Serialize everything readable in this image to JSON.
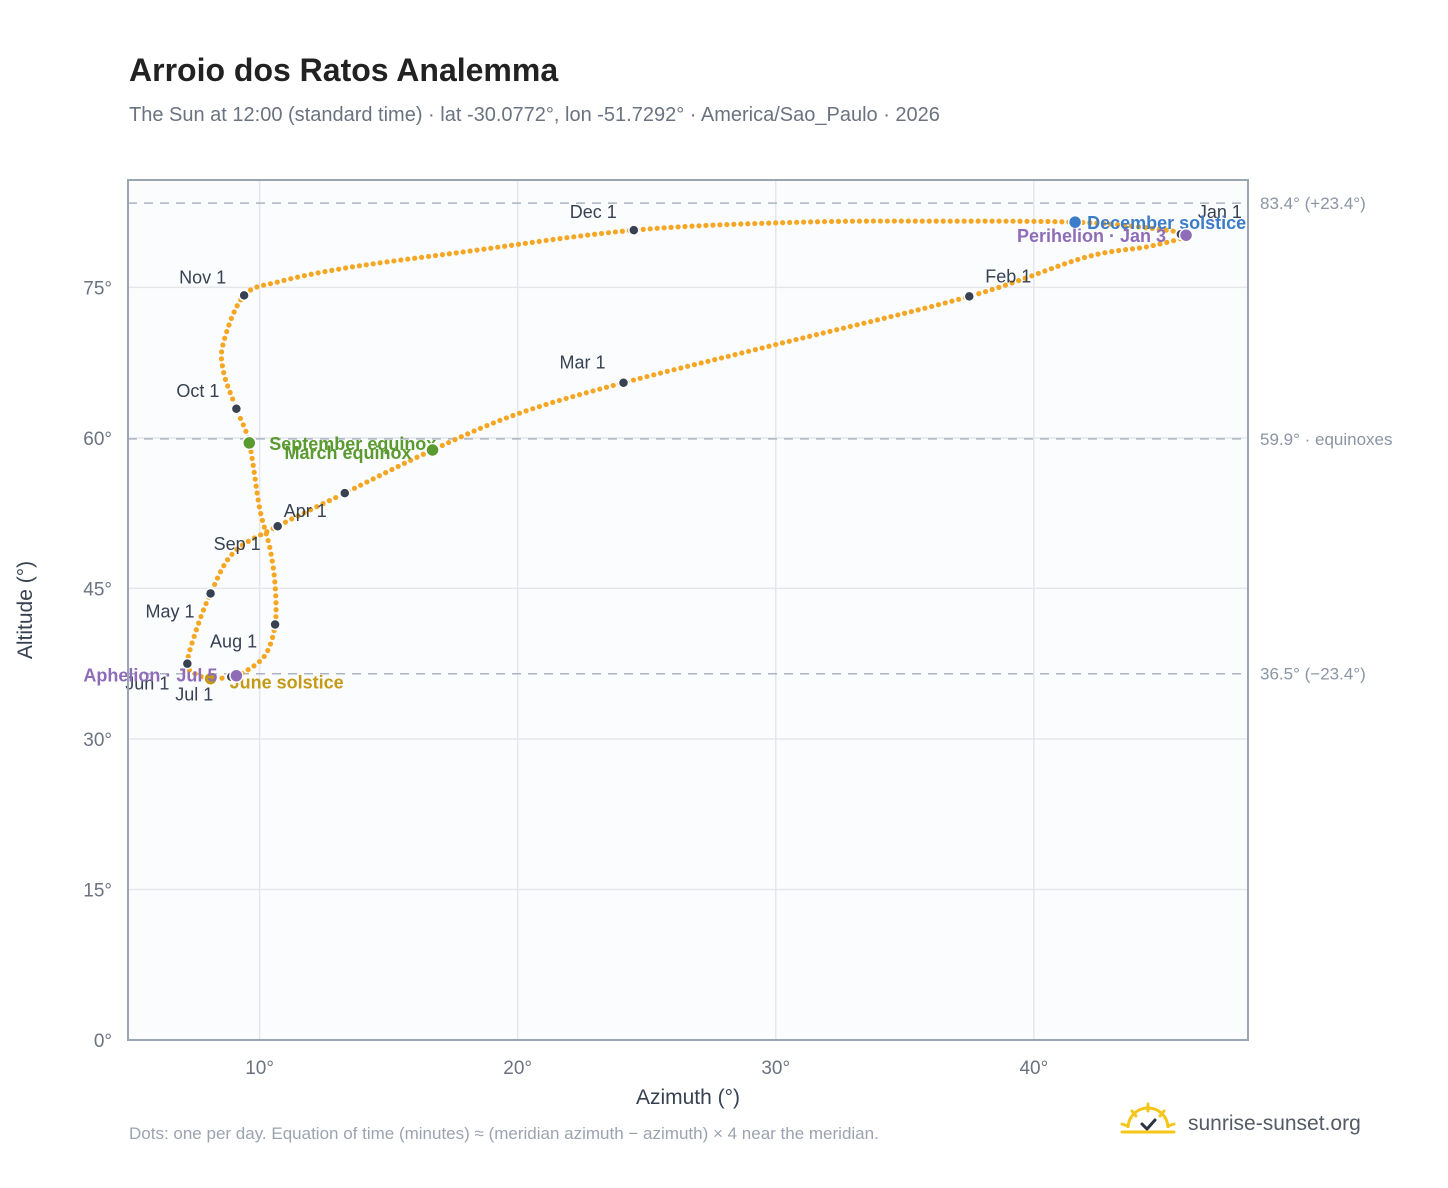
{
  "title": "Arroio dos Ratos Analemma",
  "subtitle": "The Sun at 12:00 (standard time) · lat -30.0772°, lon -51.7292° · America/Sao_Paulo · 2026",
  "footnote": "Dots: one per day. Equation of time (minutes) ≈ (meridian azimuth − azimuth) × 4 near the meridian.",
  "brand": {
    "name": "sunrise-sunset.org",
    "icon": "sun-icon"
  },
  "colors": {
    "path": "#f5a623",
    "month": "#374151",
    "equinox": "#5a9a2e",
    "december": "#3d7cc9",
    "june": "#c49a16",
    "apsis": "#8e6cb8",
    "grid": "#e5e7eb",
    "ref": "#aab4c3"
  },
  "chart_data": {
    "type": "scatter",
    "xlabel": "Azimuth (°)",
    "ylabel": "Altitude (°)",
    "xlim": [
      4.9,
      48.3
    ],
    "ylim": [
      0,
      85.7
    ],
    "x_ticks": [
      {
        "v": 10,
        "label": "10°"
      },
      {
        "v": 20,
        "label": "20°"
      },
      {
        "v": 30,
        "label": "30°"
      },
      {
        "v": 40,
        "label": "40°"
      }
    ],
    "y_ticks": [
      {
        "v": 0,
        "label": "0°"
      },
      {
        "v": 15,
        "label": "15°"
      },
      {
        "v": 30,
        "label": "30°"
      },
      {
        "v": 45,
        "label": "45°"
      },
      {
        "v": 60,
        "label": "60°"
      },
      {
        "v": 75,
        "label": "75°"
      }
    ],
    "grid": true,
    "reference_lines": [
      {
        "y": 83.4,
        "label": "83.4° (+23.4°)"
      },
      {
        "y": 59.9,
        "label": "59.9° · equinoxes"
      },
      {
        "y": 36.5,
        "label": "36.5° (−23.4°)"
      }
    ],
    "path": [
      [
        45.9,
        80.2
      ],
      [
        44.5,
        79.1
      ],
      [
        42.0,
        78.0
      ],
      [
        37.5,
        74.1
      ],
      [
        30.0,
        69.3
      ],
      [
        24.1,
        65.5
      ],
      [
        20.0,
        62.4
      ],
      [
        16.7,
        58.8
      ],
      [
        13.3,
        54.5
      ],
      [
        10.7,
        51.2
      ],
      [
        9.0,
        48.6
      ],
      [
        8.1,
        44.5
      ],
      [
        7.5,
        40.5
      ],
      [
        7.2,
        37.5
      ],
      [
        7.5,
        36.5
      ],
      [
        8.1,
        36.0
      ],
      [
        8.9,
        36.2
      ],
      [
        9.3,
        36.5
      ],
      [
        10.2,
        38.3
      ],
      [
        10.6,
        41.4
      ],
      [
        10.6,
        45.3
      ],
      [
        10.4,
        49.0
      ],
      [
        10.0,
        53.0
      ],
      [
        9.6,
        59.5
      ],
      [
        9.1,
        62.9
      ],
      [
        8.6,
        66.6
      ],
      [
        8.6,
        69.5
      ],
      [
        9.4,
        74.2
      ],
      [
        10.8,
        75.6
      ],
      [
        13.5,
        77.0
      ],
      [
        17.8,
        78.5
      ],
      [
        24.5,
        80.7
      ],
      [
        31.0,
        81.5
      ],
      [
        36.5,
        81.6
      ],
      [
        41.6,
        81.5
      ],
      [
        44.5,
        80.9
      ],
      [
        45.9,
        80.2
      ]
    ],
    "month_markers": [
      {
        "label": "Jan 1",
        "x": 45.7,
        "y": 80.3,
        "lx": 17,
        "ly": -16,
        "anchor": "start"
      },
      {
        "label": "Feb 1",
        "x": 37.5,
        "y": 74.1,
        "lx": 16,
        "ly": -14,
        "anchor": "start"
      },
      {
        "label": "Mar 1",
        "x": 24.1,
        "y": 65.5,
        "lx": -18,
        "ly": -14,
        "anchor": "end"
      },
      {
        "label": "Apr 1",
        "x": 13.3,
        "y": 54.5,
        "lx": -18,
        "ly": 24,
        "anchor": "end"
      },
      {
        "label": "May 1",
        "x": 8.1,
        "y": 44.5,
        "lx": -16,
        "ly": 24,
        "anchor": "end"
      },
      {
        "label": "Jun 1",
        "x": 7.2,
        "y": 37.5,
        "lx": -18,
        "ly": 26,
        "anchor": "end"
      },
      {
        "label": "Jul 1",
        "x": 8.9,
        "y": 36.2,
        "lx": -18,
        "ly": 24,
        "anchor": "end"
      },
      {
        "label": "Aug 1",
        "x": 10.6,
        "y": 41.4,
        "lx": -18,
        "ly": 23,
        "anchor": "end"
      },
      {
        "label": "Sep 1",
        "x": 10.7,
        "y": 51.2,
        "lx": -17,
        "ly": 24,
        "anchor": "end"
      },
      {
        "label": "Oct 1",
        "x": 9.1,
        "y": 62.9,
        "lx": -17,
        "ly": -12,
        "anchor": "end"
      },
      {
        "label": "Nov 1",
        "x": 9.4,
        "y": 74.2,
        "lx": -18,
        "ly": -12,
        "anchor": "end"
      },
      {
        "label": "Dec 1",
        "x": 24.5,
        "y": 80.7,
        "lx": -17,
        "ly": -12,
        "anchor": "end"
      }
    ],
    "events": [
      {
        "label": "December solstice",
        "x": 41.6,
        "y": 81.5,
        "color": "#3d7cc9",
        "lx": 12,
        "ly": 7,
        "anchor": "start"
      },
      {
        "label": "Perihelion · Jan 3",
        "x": 45.9,
        "y": 80.2,
        "color": "#8e6cb8",
        "lx": -20,
        "ly": 7,
        "anchor": "end"
      },
      {
        "label": "September equinox",
        "x": 9.6,
        "y": 59.5,
        "color": "#5a9a2e",
        "lx": 20,
        "ly": 7,
        "anchor": "start"
      },
      {
        "label": "March equinox",
        "x": 16.7,
        "y": 58.8,
        "color": "#5a9a2e",
        "lx": -21,
        "ly": 9,
        "anchor": "end"
      },
      {
        "label": "June solstice",
        "x": 8.1,
        "y": 36.0,
        "color": "#c49a16",
        "lx": 19,
        "ly": 10,
        "anchor": "start"
      },
      {
        "label": "Aphelion · Jul 5",
        "x": 9.1,
        "y": 36.3,
        "color": "#8e6cb8",
        "lx": -19,
        "ly": 6,
        "anchor": "end"
      }
    ]
  }
}
